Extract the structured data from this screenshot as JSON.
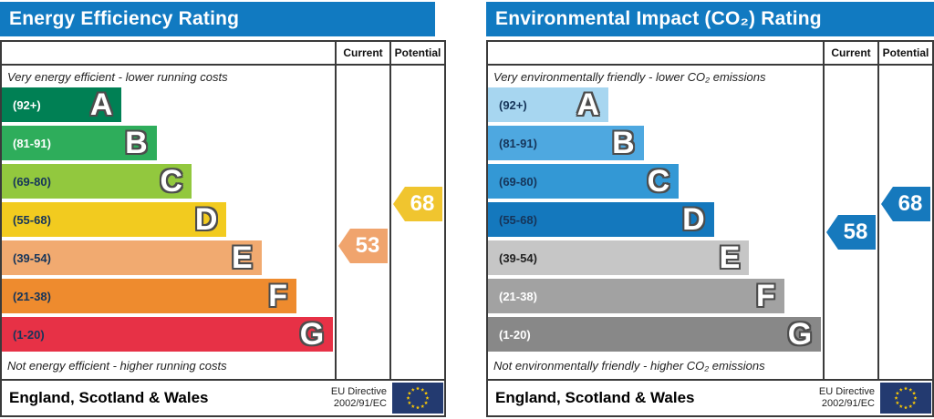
{
  "chart_data": [
    {
      "type": "bar",
      "title": "Energy Efficiency Rating",
      "header_color": "#117ac1",
      "columns": [
        "Current",
        "Potential"
      ],
      "top_caption": "Very energy efficient - lower running costs",
      "bottom_caption": "Not energy efficient - higher running costs",
      "bands": [
        {
          "letter": "A",
          "range": "(92+)",
          "color": "#008054",
          "text_color": "#ffffff",
          "width_pct": 36
        },
        {
          "letter": "B",
          "range": "(81-91)",
          "color": "#2ead5b",
          "text_color": "#ffffff",
          "width_pct": 46.5
        },
        {
          "letter": "C",
          "range": "(69-80)",
          "color": "#92c83e",
          "text_color": "#16355a",
          "width_pct": 57
        },
        {
          "letter": "D",
          "range": "(55-68)",
          "color": "#f2cb1f",
          "text_color": "#16355a",
          "width_pct": 67.5
        },
        {
          "letter": "E",
          "range": "(39-54)",
          "color": "#f1aa70",
          "text_color": "#16355a",
          "width_pct": 78
        },
        {
          "letter": "F",
          "range": "(21-38)",
          "color": "#ee8b2e",
          "text_color": "#16355a",
          "width_pct": 88.5
        },
        {
          "letter": "G",
          "range": "(1-20)",
          "color": "#e73146",
          "text_color": "#16355a",
          "width_pct": 99.5
        }
      ],
      "current": {
        "label": "Current",
        "value": 53,
        "band": "E",
        "color": "#f0a46d"
      },
      "potential": {
        "label": "Potential",
        "value": 68,
        "band": "D",
        "color": "#f0c52f"
      },
      "footer": {
        "region": "England, Scotland & Wales",
        "directive": [
          "EU Directive",
          "2002/91/EC"
        ],
        "flag_icon": "eu-flag",
        "flag_color": "#233a70",
        "star_color": "#ffcc00"
      }
    },
    {
      "type": "bar",
      "title": "Environmental Impact (CO₂) Rating",
      "header_color": "#117ac1",
      "columns": [
        "Current",
        "Potential"
      ],
      "top_caption": "Very environmentally friendly - lower CO₂ emissions",
      "bottom_caption": "Not environmentally friendly - higher CO₂ emissions",
      "bands": [
        {
          "letter": "A",
          "range": "(92+)",
          "color": "#a7d6f0",
          "text_color": "#16355a",
          "width_pct": 36
        },
        {
          "letter": "B",
          "range": "(81-91)",
          "color": "#4ea8e0",
          "text_color": "#16355a",
          "width_pct": 46.5
        },
        {
          "letter": "C",
          "range": "(69-80)",
          "color": "#3398d5",
          "text_color": "#16355a",
          "width_pct": 57
        },
        {
          "letter": "D",
          "range": "(55-68)",
          "color": "#1478bd",
          "text_color": "#16355a",
          "width_pct": 67.5
        },
        {
          "letter": "E",
          "range": "(39-54)",
          "color": "#c6c6c6",
          "text_color": "#222222",
          "width_pct": 78
        },
        {
          "letter": "F",
          "range": "(21-38)",
          "color": "#a2a2a2",
          "text_color": "#ffffff",
          "width_pct": 88.5
        },
        {
          "letter": "G",
          "range": "(1-20)",
          "color": "#888888",
          "text_color": "#ffffff",
          "width_pct": 99.5
        }
      ],
      "current": {
        "label": "Current",
        "value": 58,
        "band": "D",
        "color": "#1679bd"
      },
      "potential": {
        "label": "Potential",
        "value": 68,
        "band": "D",
        "color": "#1679bd"
      },
      "footer": {
        "region": "England, Scotland & Wales",
        "directive": [
          "EU Directive",
          "2002/91/EC"
        ],
        "flag_icon": "eu-flag",
        "flag_color": "#233a70",
        "star_color": "#ffcc00"
      }
    }
  ]
}
